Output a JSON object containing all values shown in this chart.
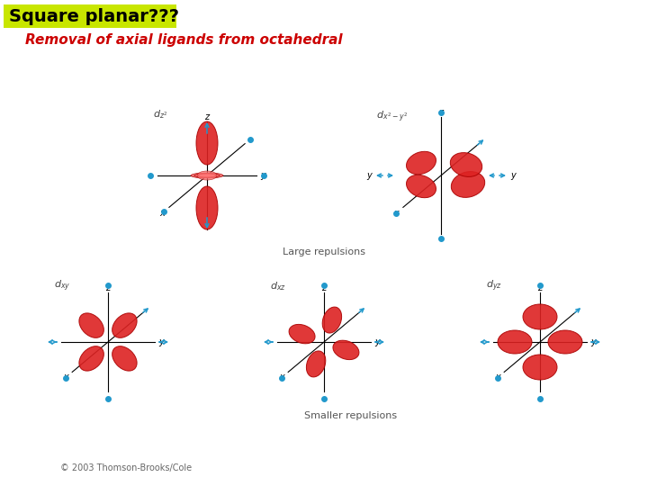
{
  "title": "Square planar???",
  "subtitle": "Removal of axial ligands from octahedral",
  "title_bg": "#c8e600",
  "title_color": "#000000",
  "subtitle_color": "#cc0000",
  "caption_top": "Large repulsions",
  "caption_bottom": "Smaller repulsions",
  "copyright": "© 2003 Thomson-Brooks/Cole",
  "background_color": "#ffffff",
  "orbital_color_face": "#dd2222",
  "orbital_edge": "#aa0000",
  "torus_color": "#ff7777",
  "axis_color": "#000000",
  "arrow_color": "#2299cc"
}
